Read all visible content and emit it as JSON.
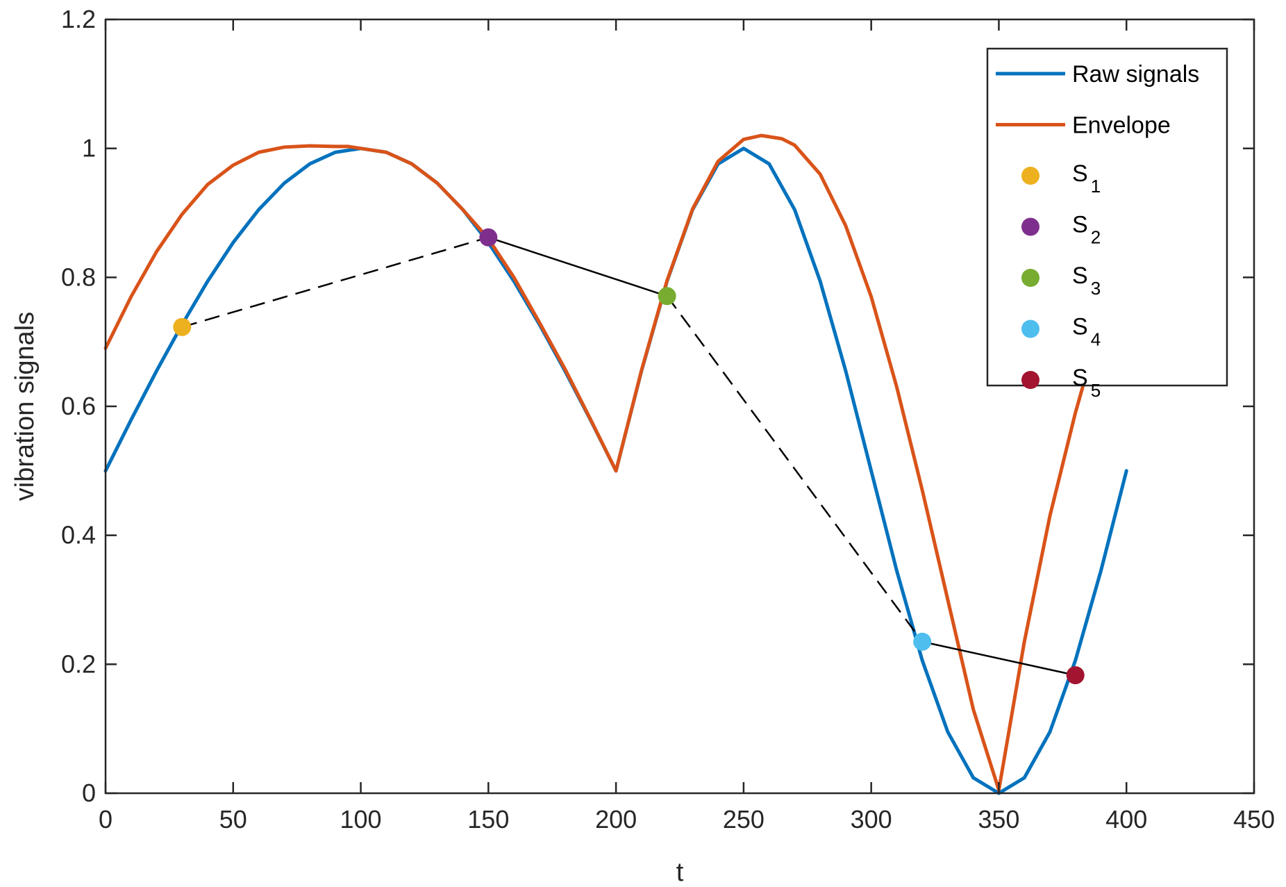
{
  "chart_data": {
    "type": "line",
    "title": "",
    "xlabel": "t",
    "ylabel": "vibration signals",
    "xlim": [
      0,
      450
    ],
    "ylim": [
      0,
      1.2
    ],
    "xticks": [
      0,
      50,
      100,
      150,
      200,
      250,
      300,
      350,
      400,
      450
    ],
    "yticks": [
      0,
      0.2,
      0.4,
      0.6,
      0.8,
      1,
      1.2
    ],
    "xtick_labels": [
      "0",
      "50",
      "100",
      "150",
      "200",
      "250",
      "300",
      "350",
      "400",
      "450"
    ],
    "ytick_labels": [
      "0",
      "0.2",
      "0.4",
      "0.6",
      "0.8",
      "1",
      "1.2"
    ],
    "grid": false,
    "legend_position": "top-right",
    "series": [
      {
        "name": "Raw signals",
        "color": "#0072BD",
        "x": [
          0,
          10,
          20,
          30,
          40,
          50,
          60,
          70,
          80,
          90,
          100,
          110,
          120,
          130,
          140,
          150,
          160,
          170,
          180,
          190,
          200,
          210,
          220,
          230,
          240,
          250,
          260,
          270,
          280,
          290,
          300,
          310,
          320,
          330,
          340,
          350,
          360,
          370,
          380,
          390,
          400
        ],
        "y": [
          0.5,
          0.579,
          0.655,
          0.727,
          0.794,
          0.854,
          0.905,
          0.946,
          0.976,
          0.994,
          1.0,
          0.994,
          0.976,
          0.946,
          0.905,
          0.854,
          0.794,
          0.727,
          0.655,
          0.579,
          0.5,
          0.655,
          0.794,
          0.905,
          0.976,
          1.0,
          0.976,
          0.905,
          0.794,
          0.655,
          0.5,
          0.345,
          0.206,
          0.095,
          0.024,
          0.0,
          0.024,
          0.095,
          0.206,
          0.345,
          0.5
        ]
      },
      {
        "name": "Envelope",
        "color": "#D95319",
        "x": [
          0,
          10,
          20,
          30,
          40,
          50,
          60,
          70,
          80,
          90,
          95,
          100,
          110,
          120,
          130,
          140,
          150,
          160,
          170,
          180,
          190,
          200,
          210,
          220,
          230,
          240,
          250,
          257,
          265,
          270,
          280,
          290,
          300,
          310,
          320,
          330,
          340,
          350,
          360,
          370,
          380,
          390,
          400
        ],
        "y": [
          0.69,
          0.77,
          0.84,
          0.898,
          0.944,
          0.974,
          0.994,
          1.002,
          1.004,
          1.003,
          1.003,
          1.0,
          0.994,
          0.976,
          0.946,
          0.905,
          0.86,
          0.8,
          0.73,
          0.658,
          0.58,
          0.5,
          0.656,
          0.795,
          0.906,
          0.98,
          1.014,
          1.02,
          1.015,
          1.005,
          0.96,
          0.88,
          0.77,
          0.63,
          0.47,
          0.3,
          0.13,
          0.005,
          0.235,
          0.43,
          0.59,
          0.73,
          0.85
        ]
      }
    ],
    "points": [
      {
        "name": "S1",
        "label": "S",
        "sub": "1",
        "x": 30,
        "y": 0.723,
        "color": "#EDB120"
      },
      {
        "name": "S2",
        "label": "S",
        "sub": "2",
        "x": 150,
        "y": 0.862,
        "color": "#7E2F8E"
      },
      {
        "name": "S3",
        "label": "S",
        "sub": "3",
        "x": 220,
        "y": 0.771,
        "color": "#77AC30"
      },
      {
        "name": "S4",
        "label": "S",
        "sub": "4",
        "x": 320,
        "y": 0.235,
        "color": "#4DBEEE"
      },
      {
        "name": "S5",
        "label": "S",
        "sub": "5",
        "x": 380,
        "y": 0.183,
        "color": "#A2142F"
      }
    ],
    "connectors": [
      {
        "from": 0,
        "to": 1,
        "style": "dashed"
      },
      {
        "from": 1,
        "to": 2,
        "style": "solid"
      },
      {
        "from": 2,
        "to": 3,
        "style": "dashed"
      },
      {
        "from": 3,
        "to": 4,
        "style": "solid"
      }
    ],
    "connector_color": "#000000"
  }
}
